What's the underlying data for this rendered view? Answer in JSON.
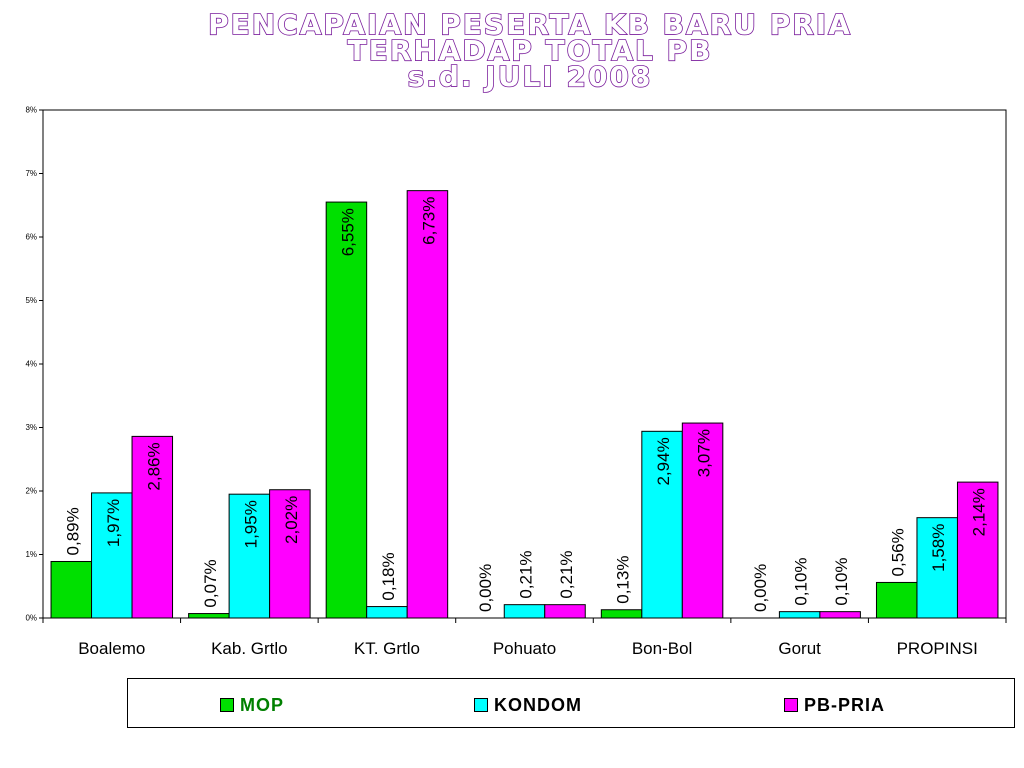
{
  "title": {
    "lines": [
      "PENCAPAIAN PESERTA KB BARU  PRIA",
      "TERHADAP  TOTAL PB",
      "s.d.  JULI 2008"
    ]
  },
  "chart_data": {
    "type": "bar",
    "categories": [
      "Boalemo",
      "Kab. Grtlo",
      "KT. Grtlo",
      "Pohuato",
      "Bon-Bol",
      "Gorut",
      "PROPINSI"
    ],
    "series": [
      {
        "name": "MOP",
        "color": "#00e000",
        "values": [
          0.89,
          0.07,
          6.55,
          0.0,
          0.13,
          0.0,
          0.56
        ],
        "labels": [
          "0,89%",
          "0,07%",
          "6,55%",
          "0,00%",
          "0,13%",
          "0,00%",
          "0,56%"
        ]
      },
      {
        "name": "KONDOM",
        "color": "#00ffff",
        "values": [
          1.97,
          1.95,
          0.18,
          0.21,
          2.94,
          0.1,
          1.58
        ],
        "labels": [
          "1,97%",
          "1,95%",
          "0,18%",
          "0,21%",
          "2,94%",
          "0,10%",
          "1,58%"
        ]
      },
      {
        "name": "PB-PRIA",
        "color": "#ff00ff",
        "values": [
          2.86,
          2.02,
          6.73,
          0.21,
          3.07,
          0.1,
          2.14
        ],
        "labels": [
          "2,86%",
          "2,02%",
          "6,73%",
          "0,21%",
          "3,07%",
          "0,10%",
          "2,14%"
        ]
      }
    ],
    "ylim": [
      0,
      8
    ],
    "yticks": [
      "0%",
      "1%",
      "2%",
      "3%",
      "4%",
      "5%",
      "6%",
      "7%",
      "8%"
    ],
    "legend_position": "bottom",
    "legend_colors": {
      "MOP": "#008000",
      "KONDOM": "#000000",
      "PB-PRIA": "#000000"
    }
  }
}
